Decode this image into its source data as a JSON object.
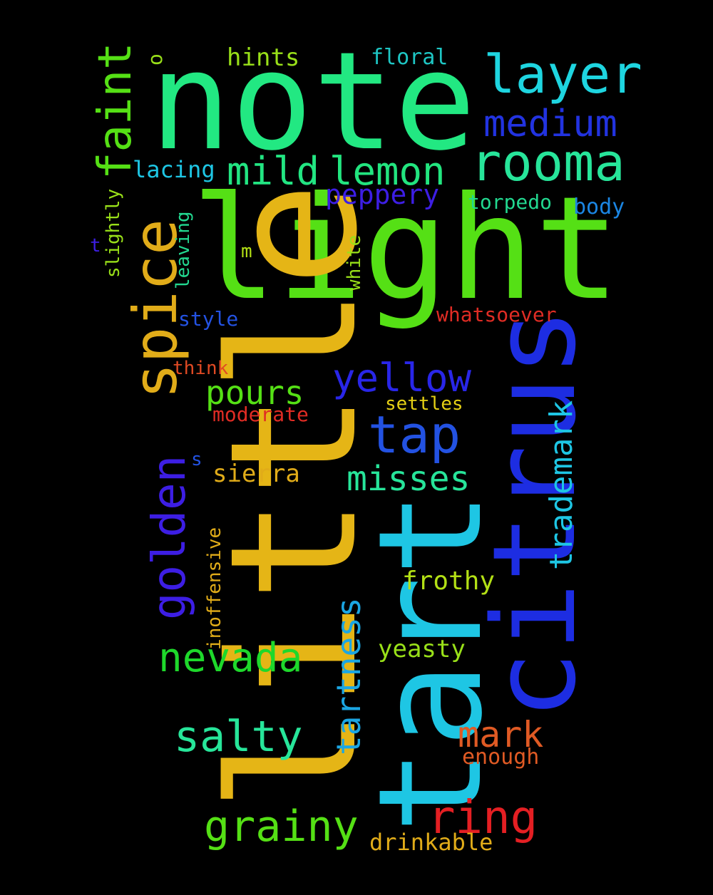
{
  "words": [
    {
      "id": "note",
      "text": "note",
      "color": "#22e882"
    },
    {
      "id": "light",
      "text": "light",
      "color": "#55e015"
    },
    {
      "id": "little",
      "text": "little",
      "color": "#e5b516"
    },
    {
      "id": "tart",
      "text": "tart",
      "color": "#1ec6e4"
    },
    {
      "id": "citrus",
      "text": "citrus",
      "color": "#1d2de2"
    },
    {
      "id": "layer",
      "text": "layer",
      "color": "#1ed5e0"
    },
    {
      "id": "rooma",
      "text": "rooma",
      "color": "#27e59a"
    },
    {
      "id": "medium",
      "text": "medium",
      "color": "#2233e0"
    },
    {
      "id": "mild",
      "text": "mild",
      "color": "#22e582"
    },
    {
      "id": "lemon",
      "text": "lemon",
      "color": "#22e57f"
    },
    {
      "id": "spice",
      "text": "spice",
      "color": "#e1ac19"
    },
    {
      "id": "faint",
      "text": "faint",
      "color": "#55e015"
    },
    {
      "id": "golden",
      "text": "golden",
      "color": "#3d1ee4"
    },
    {
      "id": "yellow",
      "text": "yellow",
      "color": "#2926e8"
    },
    {
      "id": "tap",
      "text": "tap",
      "color": "#2352e2"
    },
    {
      "id": "pours",
      "text": "pours",
      "color": "#55e015"
    },
    {
      "id": "misses",
      "text": "misses",
      "color": "#27e59a"
    },
    {
      "id": "trademark",
      "text": "trademark",
      "color": "#1ec6e4"
    },
    {
      "id": "nevada",
      "text": "nevada",
      "color": "#1ed82b"
    },
    {
      "id": "salty",
      "text": "salty",
      "color": "#27e59a"
    },
    {
      "id": "tartness",
      "text": "tartness",
      "color": "#1ba6e3"
    },
    {
      "id": "mark",
      "text": "mark",
      "color": "#e05a24"
    },
    {
      "id": "grainy",
      "text": "grainy",
      "color": "#55e015"
    },
    {
      "id": "ring",
      "text": "ring",
      "color": "#e41f23"
    },
    {
      "id": "peppery",
      "text": "peppery",
      "color": "#3d1ee4"
    },
    {
      "id": "hints",
      "text": "hints",
      "color": "#99e019"
    },
    {
      "id": "floral",
      "text": "floral",
      "color": "#1ec6c4"
    },
    {
      "id": "lacing",
      "text": "lacing",
      "color": "#1ec6e4"
    },
    {
      "id": "torpedo",
      "text": "torpedo",
      "color": "#22d890"
    },
    {
      "id": "body",
      "text": "body",
      "color": "#1b86e3"
    },
    {
      "id": "slightly",
      "text": "slightly",
      "color": "#99e019"
    },
    {
      "id": "leaving",
      "text": "leaving",
      "color": "#22d890"
    },
    {
      "id": "white",
      "text": "white",
      "color": "#99e019"
    },
    {
      "id": "whatsoever",
      "text": "whatsoever",
      "color": "#e02c24"
    },
    {
      "id": "style",
      "text": "style",
      "color": "#2352e2"
    },
    {
      "id": "think",
      "text": "think",
      "color": "#e04a24"
    },
    {
      "id": "moderate",
      "text": "moderate",
      "color": "#e02c24"
    },
    {
      "id": "settles",
      "text": "settles",
      "color": "#e5d015"
    },
    {
      "id": "sierra",
      "text": "sierra",
      "color": "#e1ac19"
    },
    {
      "id": "inoffensive",
      "text": "inoffensive",
      "color": "#e1ac19"
    },
    {
      "id": "frothy",
      "text": "frothy",
      "color": "#b3e015"
    },
    {
      "id": "yeasty",
      "text": "yeasty",
      "color": "#99e019"
    },
    {
      "id": "enough",
      "text": "enough",
      "color": "#e05a24"
    },
    {
      "id": "drinkable",
      "text": "drinkable",
      "color": "#e1ac19"
    },
    {
      "id": "o",
      "text": "o",
      "color": "#99e019"
    },
    {
      "id": "t",
      "text": "t",
      "color": "#3d1ee4"
    },
    {
      "id": "m",
      "text": "m",
      "color": "#b3e015"
    },
    {
      "id": "s",
      "text": "s",
      "color": "#2352e2"
    }
  ]
}
